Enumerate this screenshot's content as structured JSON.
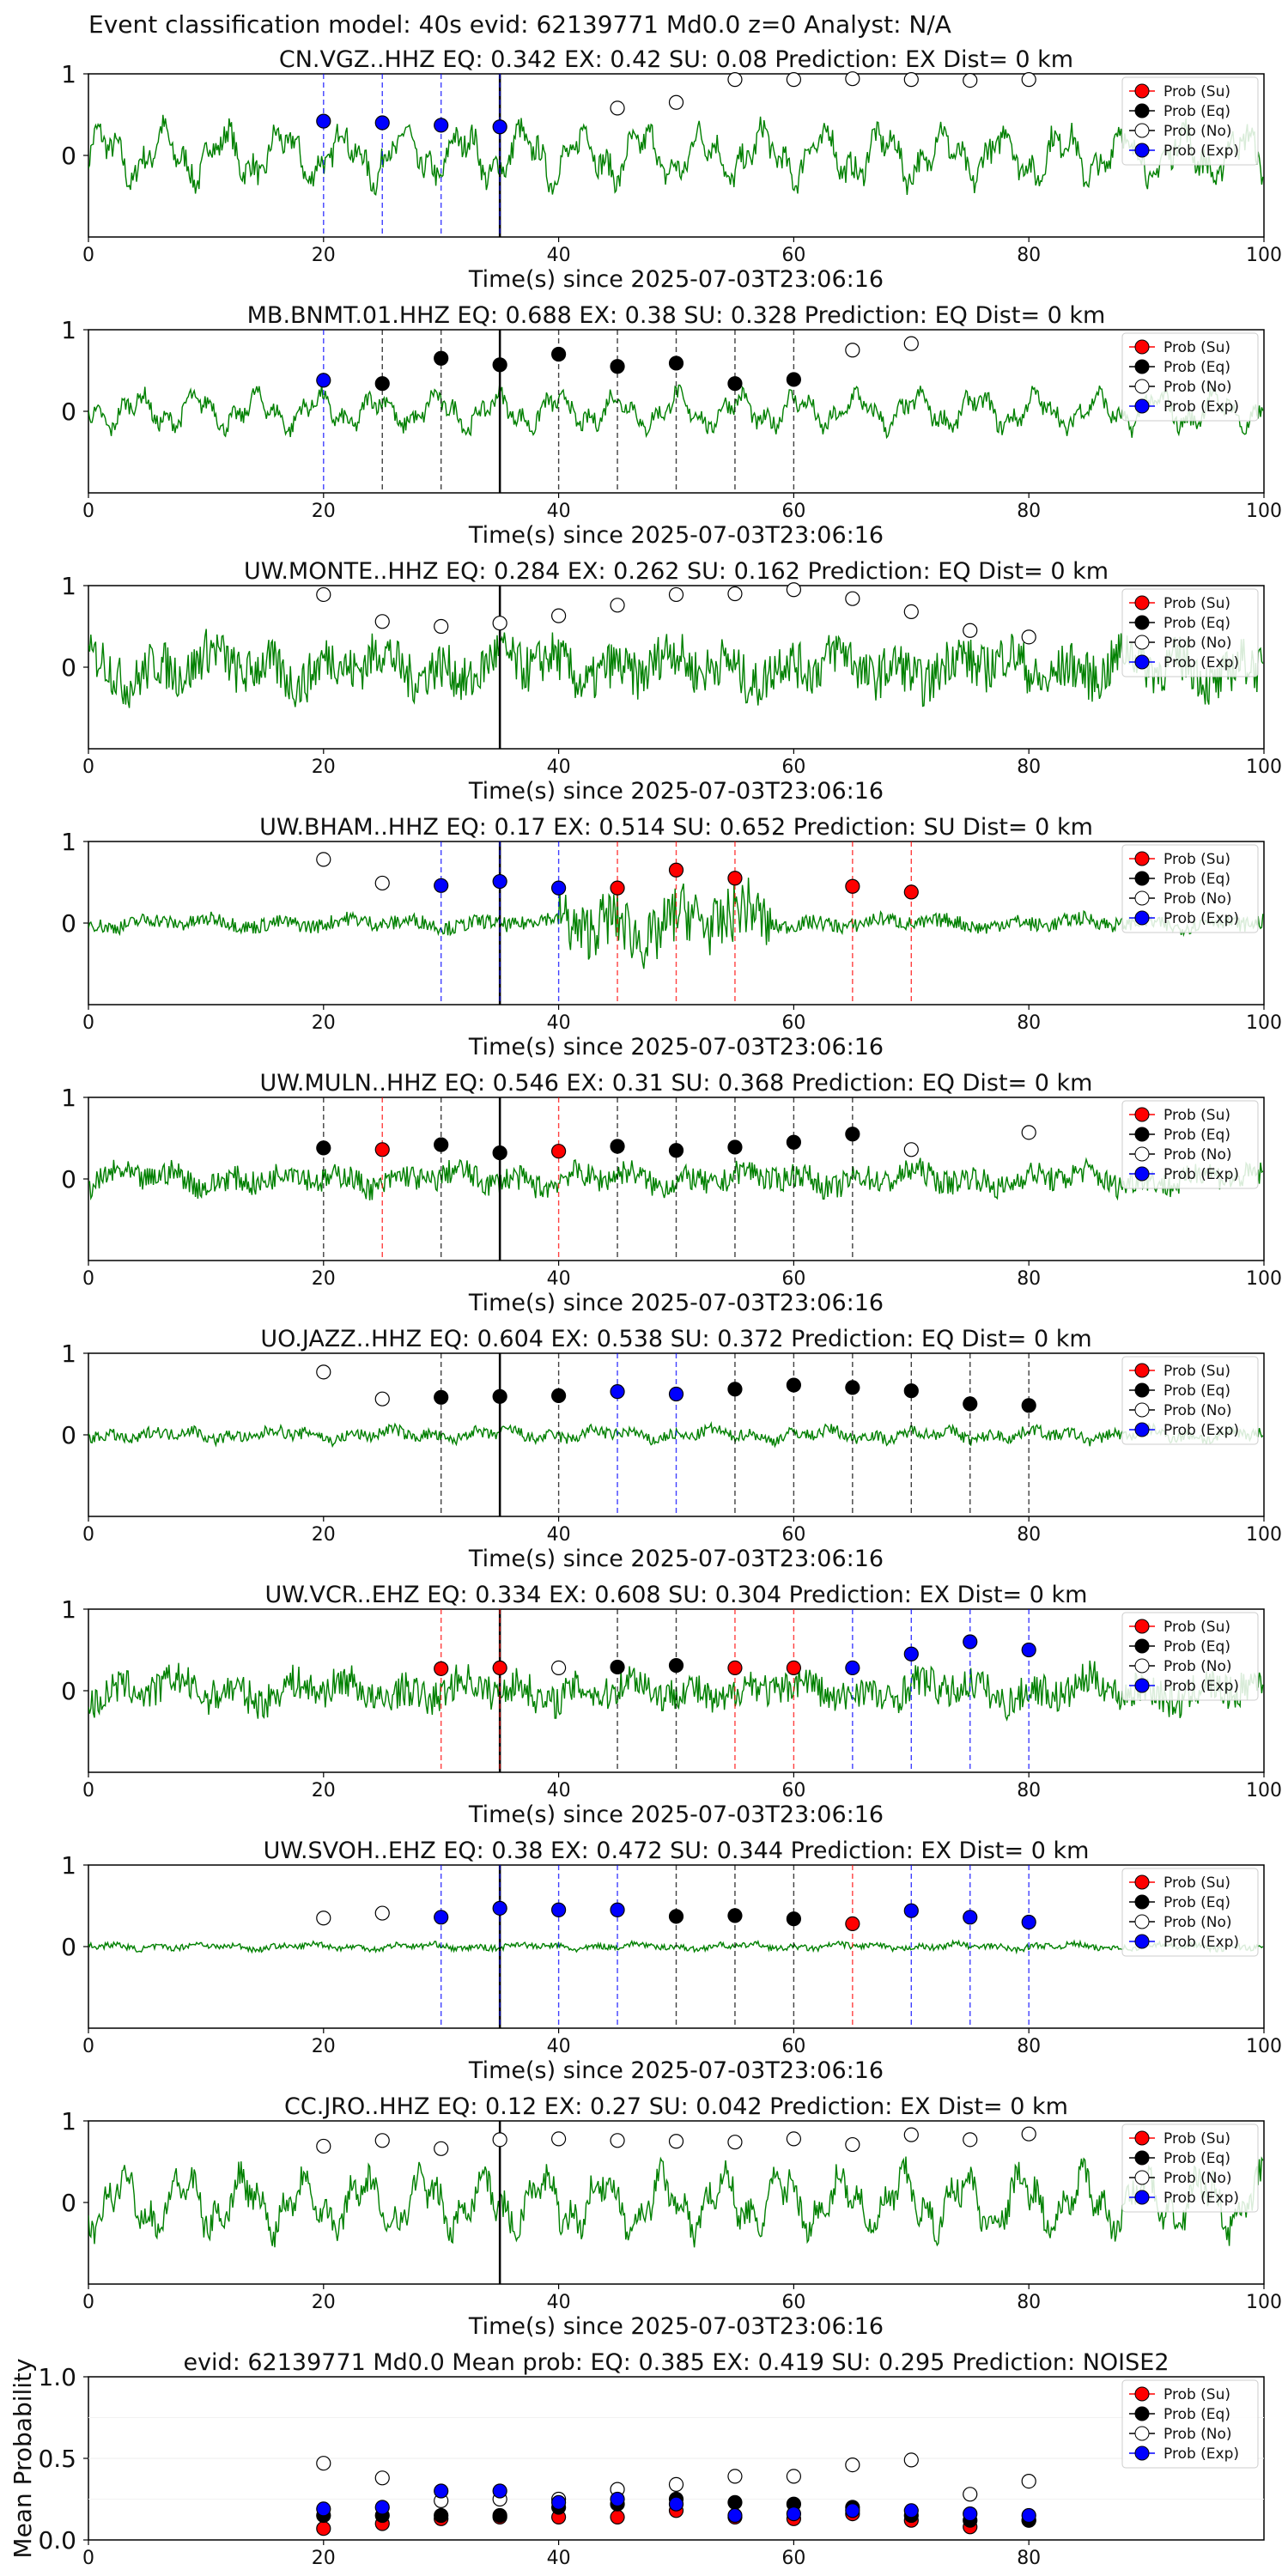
{
  "suptitle": "Event classification model: 40s evid: 62139771 Md0.0 z=0 Analyst: N/A",
  "xlabel": "Time(s) since 2025-07-03T23:06:16",
  "legend": [
    "Prob (Su)",
    "Prob (Eq)",
    "Prob (No)",
    "Prob (Exp)"
  ],
  "colors": {
    "su": "#ff0000",
    "eq": "#000000",
    "no": "#ffffff",
    "ex": "#0000ff",
    "trace": "#008000",
    "onset": "#000000"
  },
  "chart_data": [
    {
      "type": "line",
      "title": "CN.VGZ..HHZ   EQ: 0.342  EX: 0.42  SU: 0.08   Prediction: EX    Dist= 0 km",
      "xlim": [
        0,
        100
      ],
      "ylim": [
        -1,
        1
      ],
      "xticks": [
        0,
        20,
        40,
        60,
        80,
        100
      ],
      "yticks": [
        0,
        1
      ],
      "onset": 35,
      "trace_amp": 0.45,
      "trace_style": "smooth",
      "markers": [
        {
          "x": 20,
          "y": 0.42,
          "c": "ex"
        },
        {
          "x": 25,
          "y": 0.4,
          "c": "ex"
        },
        {
          "x": 30,
          "y": 0.37,
          "c": "ex"
        },
        {
          "x": 35,
          "y": 0.35,
          "c": "ex"
        },
        {
          "x": 45,
          "y": 0.58,
          "c": "no"
        },
        {
          "x": 50,
          "y": 0.65,
          "c": "no"
        },
        {
          "x": 55,
          "y": 0.93,
          "c": "no"
        },
        {
          "x": 60,
          "y": 0.93,
          "c": "no"
        },
        {
          "x": 65,
          "y": 0.94,
          "c": "no"
        },
        {
          "x": 70,
          "y": 0.93,
          "c": "no"
        },
        {
          "x": 75,
          "y": 0.92,
          "c": "no"
        },
        {
          "x": 80,
          "y": 0.93,
          "c": "no"
        }
      ]
    },
    {
      "type": "line",
      "title": "MB.BNMT.01.HHZ   EQ: 0.688  EX: 0.38  SU: 0.328   Prediction: EQ    Dist= 0 km",
      "xlim": [
        0,
        100
      ],
      "ylim": [
        -1,
        1
      ],
      "xticks": [
        0,
        20,
        40,
        60,
        80,
        100
      ],
      "yticks": [
        0,
        1
      ],
      "onset": 35,
      "trace_amp": 0.3,
      "trace_style": "smooth",
      "markers": [
        {
          "x": 20,
          "y": 0.38,
          "c": "ex"
        },
        {
          "x": 25,
          "y": 0.34,
          "c": "eq"
        },
        {
          "x": 30,
          "y": 0.65,
          "c": "eq"
        },
        {
          "x": 35,
          "y": 0.57,
          "c": "eq"
        },
        {
          "x": 40,
          "y": 0.7,
          "c": "eq"
        },
        {
          "x": 45,
          "y": 0.55,
          "c": "eq"
        },
        {
          "x": 50,
          "y": 0.59,
          "c": "eq"
        },
        {
          "x": 55,
          "y": 0.34,
          "c": "eq"
        },
        {
          "x": 60,
          "y": 0.39,
          "c": "eq"
        },
        {
          "x": 65,
          "y": 0.75,
          "c": "no"
        },
        {
          "x": 70,
          "y": 0.83,
          "c": "no"
        }
      ]
    },
    {
      "type": "line",
      "title": "UW.MONTE..HHZ   EQ: 0.284  EX: 0.262  SU: 0.162   Prediction: EQ    Dist= 0 km",
      "xlim": [
        0,
        100
      ],
      "ylim": [
        -1,
        1
      ],
      "xticks": [
        0,
        20,
        40,
        60,
        80,
        100
      ],
      "yticks": [
        0,
        1
      ],
      "onset": 35,
      "trace_amp": 0.42,
      "trace_style": "noisy",
      "markers": [
        {
          "x": 20,
          "y": 0.89,
          "c": "no"
        },
        {
          "x": 25,
          "y": 0.56,
          "c": "no"
        },
        {
          "x": 30,
          "y": 0.5,
          "c": "no"
        },
        {
          "x": 35,
          "y": 0.54,
          "c": "no"
        },
        {
          "x": 40,
          "y": 0.63,
          "c": "no"
        },
        {
          "x": 45,
          "y": 0.76,
          "c": "no"
        },
        {
          "x": 50,
          "y": 0.89,
          "c": "no"
        },
        {
          "x": 55,
          "y": 0.9,
          "c": "no"
        },
        {
          "x": 60,
          "y": 0.95,
          "c": "no"
        },
        {
          "x": 65,
          "y": 0.84,
          "c": "no"
        },
        {
          "x": 70,
          "y": 0.68,
          "c": "no"
        },
        {
          "x": 75,
          "y": 0.45,
          "c": "no"
        },
        {
          "x": 80,
          "y": 0.37,
          "c": "no"
        }
      ]
    },
    {
      "type": "line",
      "title": "UW.BHAM..HHZ   EQ: 0.17  EX: 0.514  SU: 0.652   Prediction: SU    Dist= 0 km",
      "xlim": [
        0,
        100
      ],
      "ylim": [
        -1,
        1
      ],
      "xticks": [
        0,
        20,
        40,
        60,
        80,
        100
      ],
      "yticks": [
        0,
        1
      ],
      "onset": 35,
      "trace_amp": 0.12,
      "trace_style": "burst",
      "markers": [
        {
          "x": 20,
          "y": 0.78,
          "c": "no"
        },
        {
          "x": 25,
          "y": 0.49,
          "c": "no"
        },
        {
          "x": 30,
          "y": 0.46,
          "c": "ex"
        },
        {
          "x": 35,
          "y": 0.51,
          "c": "ex"
        },
        {
          "x": 40,
          "y": 0.43,
          "c": "ex"
        },
        {
          "x": 45,
          "y": 0.43,
          "c": "su"
        },
        {
          "x": 50,
          "y": 0.65,
          "c": "su"
        },
        {
          "x": 55,
          "y": 0.55,
          "c": "su"
        },
        {
          "x": 65,
          "y": 0.45,
          "c": "su"
        },
        {
          "x": 70,
          "y": 0.38,
          "c": "su"
        }
      ]
    },
    {
      "type": "line",
      "title": "UW.MULN..HHZ   EQ: 0.546  EX: 0.31  SU: 0.368   Prediction: EQ    Dist= 0 km",
      "xlim": [
        0,
        100
      ],
      "ylim": [
        -1,
        1
      ],
      "xticks": [
        0,
        20,
        40,
        60,
        80,
        100
      ],
      "yticks": [
        0,
        1
      ],
      "onset": 35,
      "trace_amp": 0.22,
      "trace_style": "noisy",
      "markers": [
        {
          "x": 20,
          "y": 0.38,
          "c": "eq"
        },
        {
          "x": 25,
          "y": 0.36,
          "c": "su"
        },
        {
          "x": 30,
          "y": 0.42,
          "c": "eq"
        },
        {
          "x": 35,
          "y": 0.32,
          "c": "eq"
        },
        {
          "x": 40,
          "y": 0.34,
          "c": "su"
        },
        {
          "x": 45,
          "y": 0.4,
          "c": "eq"
        },
        {
          "x": 50,
          "y": 0.35,
          "c": "eq"
        },
        {
          "x": 55,
          "y": 0.39,
          "c": "eq"
        },
        {
          "x": 60,
          "y": 0.45,
          "c": "eq"
        },
        {
          "x": 65,
          "y": 0.55,
          "c": "eq"
        },
        {
          "x": 70,
          "y": 0.36,
          "c": "no"
        },
        {
          "x": 80,
          "y": 0.57,
          "c": "no"
        }
      ]
    },
    {
      "type": "line",
      "title": "UO.JAZZ..HHZ   EQ: 0.604  EX: 0.538  SU: 0.372   Prediction: EQ    Dist= 0 km",
      "xlim": [
        0,
        100
      ],
      "ylim": [
        -1,
        1
      ],
      "xticks": [
        0,
        20,
        40,
        60,
        80,
        100
      ],
      "yticks": [
        0,
        1
      ],
      "onset": 35,
      "trace_amp": 0.12,
      "trace_style": "quiet",
      "markers": [
        {
          "x": 20,
          "y": 0.77,
          "c": "no"
        },
        {
          "x": 25,
          "y": 0.44,
          "c": "no"
        },
        {
          "x": 30,
          "y": 0.46,
          "c": "eq"
        },
        {
          "x": 35,
          "y": 0.47,
          "c": "eq"
        },
        {
          "x": 40,
          "y": 0.48,
          "c": "eq"
        },
        {
          "x": 45,
          "y": 0.53,
          "c": "ex"
        },
        {
          "x": 50,
          "y": 0.5,
          "c": "ex"
        },
        {
          "x": 55,
          "y": 0.56,
          "c": "eq"
        },
        {
          "x": 60,
          "y": 0.61,
          "c": "eq"
        },
        {
          "x": 65,
          "y": 0.58,
          "c": "eq"
        },
        {
          "x": 70,
          "y": 0.54,
          "c": "eq"
        },
        {
          "x": 75,
          "y": 0.38,
          "c": "eq"
        },
        {
          "x": 80,
          "y": 0.36,
          "c": "eq"
        }
      ]
    },
    {
      "type": "line",
      "title": "UW.VCR..EHZ   EQ: 0.334  EX: 0.608  SU: 0.304   Prediction: EX    Dist= 0 km",
      "xlim": [
        0,
        100
      ],
      "ylim": [
        -1,
        1
      ],
      "xticks": [
        0,
        20,
        40,
        60,
        80,
        100
      ],
      "yticks": [
        0,
        1
      ],
      "onset": 35,
      "trace_amp": 0.3,
      "trace_style": "noisy",
      "markers": [
        {
          "x": 30,
          "y": 0.27,
          "c": "su"
        },
        {
          "x": 35,
          "y": 0.28,
          "c": "su"
        },
        {
          "x": 40,
          "y": 0.28,
          "c": "no"
        },
        {
          "x": 45,
          "y": 0.29,
          "c": "eq"
        },
        {
          "x": 50,
          "y": 0.31,
          "c": "eq"
        },
        {
          "x": 55,
          "y": 0.28,
          "c": "su"
        },
        {
          "x": 60,
          "y": 0.28,
          "c": "su"
        },
        {
          "x": 65,
          "y": 0.28,
          "c": "ex"
        },
        {
          "x": 70,
          "y": 0.45,
          "c": "ex"
        },
        {
          "x": 75,
          "y": 0.6,
          "c": "ex"
        },
        {
          "x": 80,
          "y": 0.5,
          "c": "ex"
        }
      ]
    },
    {
      "type": "line",
      "title": "UW.SVOH..EHZ   EQ: 0.38  EX: 0.472  SU: 0.344   Prediction: EX    Dist= 0 km",
      "xlim": [
        0,
        100
      ],
      "ylim": [
        -1,
        1
      ],
      "xticks": [
        0,
        20,
        40,
        60,
        80,
        100
      ],
      "yticks": [
        0,
        1
      ],
      "onset": 35,
      "trace_amp": 0.06,
      "trace_style": "quiet",
      "markers": [
        {
          "x": 20,
          "y": 0.35,
          "c": "no"
        },
        {
          "x": 25,
          "y": 0.41,
          "c": "no"
        },
        {
          "x": 30,
          "y": 0.36,
          "c": "ex"
        },
        {
          "x": 35,
          "y": 0.47,
          "c": "ex"
        },
        {
          "x": 40,
          "y": 0.45,
          "c": "ex"
        },
        {
          "x": 45,
          "y": 0.45,
          "c": "ex"
        },
        {
          "x": 50,
          "y": 0.37,
          "c": "eq"
        },
        {
          "x": 55,
          "y": 0.38,
          "c": "eq"
        },
        {
          "x": 60,
          "y": 0.34,
          "c": "eq"
        },
        {
          "x": 65,
          "y": 0.28,
          "c": "su"
        },
        {
          "x": 70,
          "y": 0.44,
          "c": "ex"
        },
        {
          "x": 75,
          "y": 0.36,
          "c": "ex"
        },
        {
          "x": 80,
          "y": 0.3,
          "c": "ex"
        }
      ]
    },
    {
      "type": "line",
      "title": "CC.JRO..HHZ   EQ: 0.12  EX: 0.27  SU: 0.042   Prediction: EX    Dist= 0 km",
      "xlim": [
        0,
        100
      ],
      "ylim": [
        -1,
        1
      ],
      "xticks": [
        0,
        20,
        40,
        60,
        80,
        100
      ],
      "yticks": [
        0,
        1
      ],
      "onset": 35,
      "trace_amp": 0.5,
      "trace_style": "smooth",
      "markers": [
        {
          "x": 20,
          "y": 0.69,
          "c": "no"
        },
        {
          "x": 25,
          "y": 0.76,
          "c": "no"
        },
        {
          "x": 30,
          "y": 0.66,
          "c": "no"
        },
        {
          "x": 35,
          "y": 0.77,
          "c": "no"
        },
        {
          "x": 40,
          "y": 0.78,
          "c": "no"
        },
        {
          "x": 45,
          "y": 0.76,
          "c": "no"
        },
        {
          "x": 50,
          "y": 0.75,
          "c": "no"
        },
        {
          "x": 55,
          "y": 0.74,
          "c": "no"
        },
        {
          "x": 60,
          "y": 0.78,
          "c": "no"
        },
        {
          "x": 65,
          "y": 0.71,
          "c": "no"
        },
        {
          "x": 70,
          "y": 0.83,
          "c": "no"
        },
        {
          "x": 75,
          "y": 0.77,
          "c": "no"
        },
        {
          "x": 80,
          "y": 0.84,
          "c": "no"
        }
      ]
    },
    {
      "type": "scatter",
      "title": "evid: 62139771  Md0.0   Mean prob:    EQ: 0.385  EX: 0.419  SU: 0.295   Prediction: NOISE2",
      "ylabel": "Mean Probability",
      "xlim": [
        0,
        100
      ],
      "ylim": [
        0,
        1
      ],
      "xticks": [
        0,
        20,
        40,
        60,
        80
      ],
      "yticks": [
        "0.0",
        "0.5",
        "1.0"
      ],
      "x": [
        20,
        25,
        30,
        35,
        40,
        45,
        50,
        55,
        60,
        65,
        70,
        75,
        80
      ],
      "series": [
        {
          "name": "Prob (Su)",
          "c": "su",
          "values": [
            0.07,
            0.1,
            0.13,
            0.14,
            0.14,
            0.14,
            0.18,
            0.14,
            0.13,
            0.16,
            0.12,
            0.08,
            0.12
          ]
        },
        {
          "name": "Prob (Eq)",
          "c": "eq",
          "values": [
            0.15,
            0.15,
            0.15,
            0.15,
            0.2,
            0.22,
            0.25,
            0.23,
            0.22,
            0.2,
            0.15,
            0.12,
            0.12
          ]
        },
        {
          "name": "Prob (No)",
          "c": "no",
          "values": [
            0.47,
            0.38,
            0.24,
            0.25,
            0.25,
            0.31,
            0.34,
            0.39,
            0.39,
            0.46,
            0.49,
            0.28,
            0.36
          ]
        },
        {
          "name": "Prob (Exp)",
          "c": "ex",
          "values": [
            0.19,
            0.2,
            0.3,
            0.3,
            0.23,
            0.25,
            0.22,
            0.15,
            0.16,
            0.18,
            0.18,
            0.16,
            0.15
          ]
        }
      ]
    }
  ]
}
